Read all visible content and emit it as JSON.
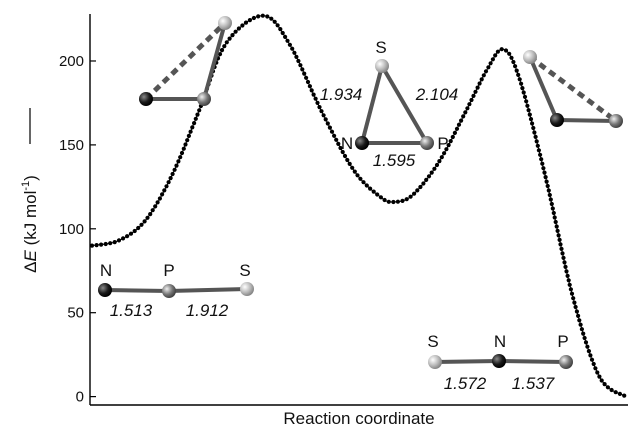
{
  "chart_data": {
    "type": "line",
    "title": "",
    "xlabel": "Reaction coordinate",
    "ylabel": {
      "prefix": "Δ",
      "var": "E",
      "unit_open": " (kJ mol",
      "unit_sup": "-1",
      "unit_close": ")"
    },
    "ylim": [
      -5,
      228
    ],
    "yticks": [
      0,
      50,
      100,
      150,
      200
    ],
    "xlim": [
      0,
      1
    ],
    "x_ticks_labeled": false,
    "grid": false,
    "legend": "none",
    "series": [
      {
        "marker": "dots",
        "points": [
          [
            0.0,
            90
          ],
          [
            0.05,
            93
          ],
          [
            0.1,
            105
          ],
          [
            0.15,
            132
          ],
          [
            0.2,
            170
          ],
          [
            0.25,
            210
          ],
          [
            0.32,
            227
          ],
          [
            0.37,
            210
          ],
          [
            0.43,
            170
          ],
          [
            0.49,
            135
          ],
          [
            0.54,
            119
          ],
          [
            0.565,
            116
          ],
          [
            0.6,
            120
          ],
          [
            0.65,
            140
          ],
          [
            0.7,
            170
          ],
          [
            0.74,
            195
          ],
          [
            0.77,
            207
          ],
          [
            0.8,
            190
          ],
          [
            0.85,
            130
          ],
          [
            0.9,
            60
          ],
          [
            0.95,
            12
          ],
          [
            1.0,
            0
          ]
        ]
      }
    ],
    "annotations": {
      "reactant": {
        "atoms": [
          "N",
          "P",
          "S"
        ],
        "bonds": [
          "1.513",
          "1.912"
        ]
      },
      "intermediate": {
        "atoms": [
          "S",
          "N",
          "P"
        ],
        "bonds": [
          "1.934",
          "2.104",
          "1.595"
        ]
      },
      "product": {
        "atoms": [
          "S",
          "N",
          "P"
        ],
        "bonds": [
          "1.572",
          "1.537"
        ]
      }
    }
  }
}
